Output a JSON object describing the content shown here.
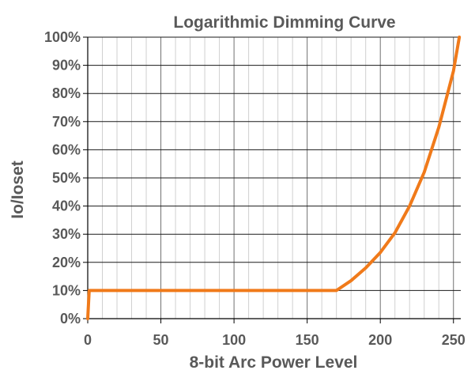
{
  "chart_data": {
    "type": "line",
    "title": "Logarithmic Dimming Curve",
    "xlabel": "8-bit Arc Power Level",
    "ylabel": "Io/Ioset",
    "xlim": [
      0,
      255
    ],
    "ylim": [
      0,
      100
    ],
    "x_ticks": [
      0,
      50,
      100,
      150,
      200,
      250
    ],
    "x_tick_labels": [
      "0",
      "50",
      "100",
      "150",
      "200",
      "250"
    ],
    "x_minor_step": 10,
    "y_ticks": [
      0,
      10,
      20,
      30,
      40,
      50,
      60,
      70,
      80,
      90,
      100
    ],
    "y_tick_labels": [
      "0%",
      "10%",
      "20%",
      "30%",
      "40%",
      "50%",
      "60%",
      "70%",
      "80%",
      "90%",
      "100%"
    ],
    "grid": true,
    "legend": "none",
    "series": [
      {
        "color": "#f07a1a",
        "x": [
          0,
          1,
          170,
          180,
          190,
          200,
          210,
          220,
          230,
          240,
          250,
          254
        ],
        "y": [
          0,
          10,
          10,
          13.5,
          18,
          23.5,
          30.5,
          40,
          52,
          68,
          88,
          100
        ]
      }
    ]
  }
}
